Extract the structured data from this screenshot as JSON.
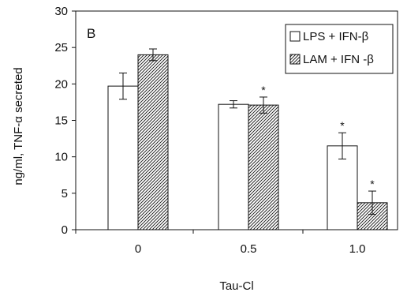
{
  "chart_data": {
    "type": "bar",
    "panel_label": "B",
    "xlabel": "Tau-Cl",
    "ylabel": "ng/ml, TNF-α secreted",
    "ylim": [
      0,
      30
    ],
    "yticks": [
      0,
      5,
      10,
      15,
      20,
      25,
      30
    ],
    "categories": [
      "0",
      "0.5",
      "1.0"
    ],
    "series": [
      {
        "name": "LPS + IFN-β",
        "fill": "open",
        "values": [
          19.7,
          17.2,
          11.5
        ],
        "errors": [
          1.8,
          0.5,
          1.8
        ],
        "significant": [
          false,
          false,
          true
        ]
      },
      {
        "name": "LAM + IFN -β",
        "fill": "hatched",
        "values": [
          24.0,
          17.1,
          3.7
        ],
        "errors": [
          0.8,
          1.1,
          1.6
        ],
        "significant": [
          false,
          true,
          true
        ]
      }
    ],
    "significance_marker": "*",
    "legend_position": "top-right",
    "grid": false
  }
}
